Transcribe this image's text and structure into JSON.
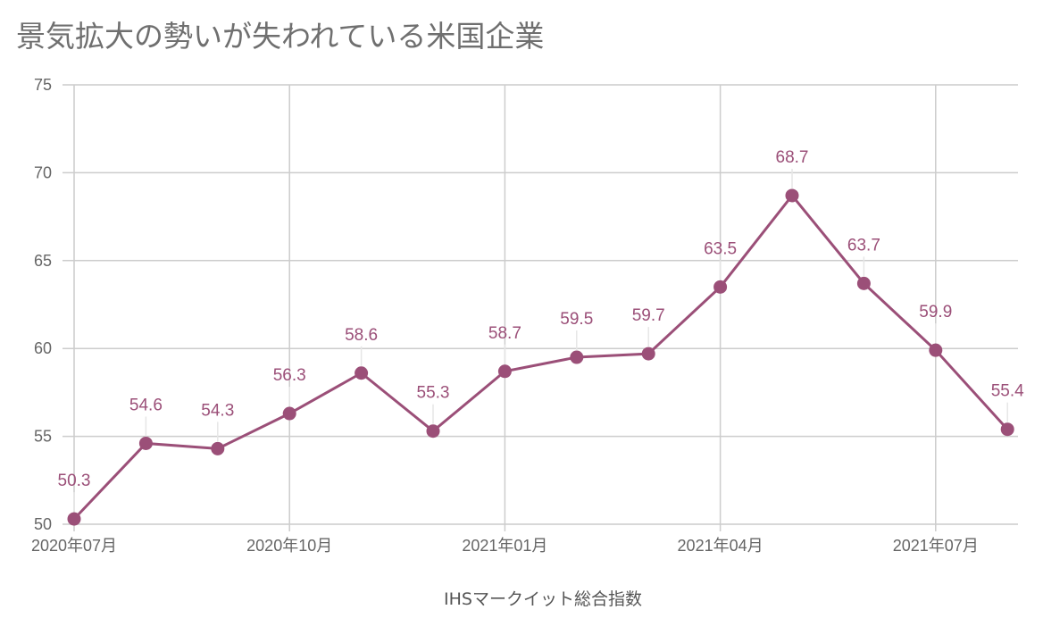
{
  "chart_data": {
    "type": "line",
    "title": "景気拡大の勢いが失われている米国企業",
    "xlabel": "IHSマークイット総合指数",
    "ylabel": "",
    "ylim": [
      50,
      75
    ],
    "yticks": [
      50,
      55,
      60,
      65,
      70,
      75
    ],
    "x": [
      "2020-07",
      "2020-08",
      "2020-09",
      "2020-10",
      "2020-11",
      "2020-12",
      "2021-01",
      "2021-02",
      "2021-03",
      "2021-04",
      "2021-05",
      "2021-06",
      "2021-07",
      "2021-08"
    ],
    "xtick_labels": [
      {
        "index": 0,
        "label": "2020年07月"
      },
      {
        "index": 3,
        "label": "2020年10月"
      },
      {
        "index": 6,
        "label": "2021年01月"
      },
      {
        "index": 9,
        "label": "2021年04月"
      },
      {
        "index": 12,
        "label": "2021年07月"
      }
    ],
    "series": [
      {
        "name": "IHSマークイット総合指数",
        "values": [
          50.3,
          54.6,
          54.3,
          56.3,
          58.6,
          55.3,
          58.7,
          59.5,
          59.7,
          63.5,
          68.7,
          63.7,
          59.9,
          55.4
        ]
      }
    ],
    "grid": true,
    "color": "#9b4f78"
  }
}
